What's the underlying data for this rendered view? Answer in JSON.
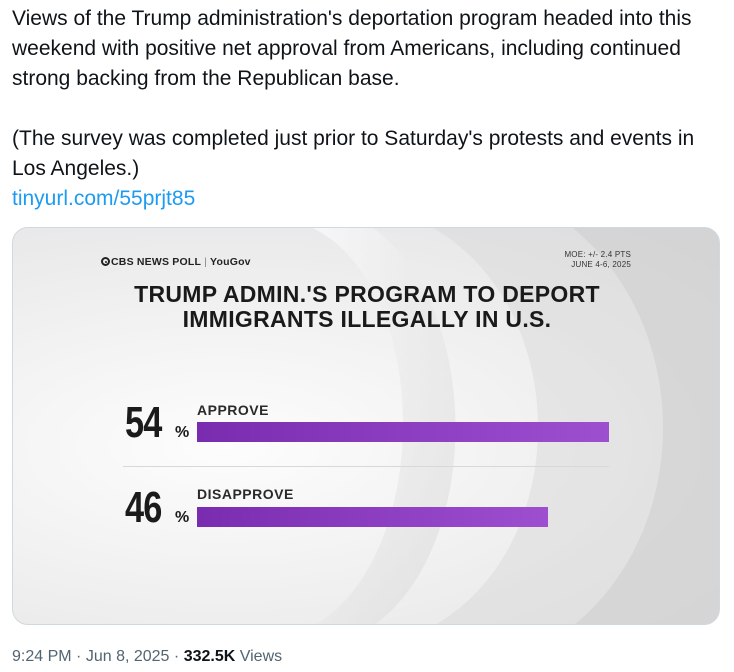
{
  "tweet": {
    "paragraph1": "Views of the Trump administration's deportation program headed into this weekend with positive net approval from Americans, including continued strong backing from the Republican base.",
    "paragraph2": "(The survey was completed just prior to Saturday's protests and events in Los Angeles.)",
    "link_text": "tinyurl.com/55prjt85"
  },
  "graphic": {
    "brand_cbs": "CBS NEWS POLL",
    "brand_partner": "YouGov",
    "moe_line1": "MOE: +/- 2.4 PTS",
    "moe_line2": "JUNE 4-6, 2025",
    "title_line1": "TRUMP ADMIN.'S PROGRAM TO DEPORT",
    "title_line2": "IMMIGRANTS ILLEGALLY IN U.S.",
    "bar_color": "#8a3cc0"
  },
  "chart_data": {
    "type": "bar",
    "title": "TRUMP ADMIN.'S PROGRAM TO DEPORT IMMIGRANTS ILLEGALLY IN U.S.",
    "categories": [
      "APPROVE",
      "DISAPPROVE"
    ],
    "values": [
      54,
      46
    ],
    "value_labels": [
      "54",
      "46"
    ],
    "unit": "%",
    "orientation": "horizontal",
    "grid": false
  },
  "meta": {
    "time": "9:24 PM",
    "dot1": "·",
    "date": "Jun 8, 2025",
    "dot2": "·",
    "views_count": "332.5K",
    "views_label": "Views"
  }
}
